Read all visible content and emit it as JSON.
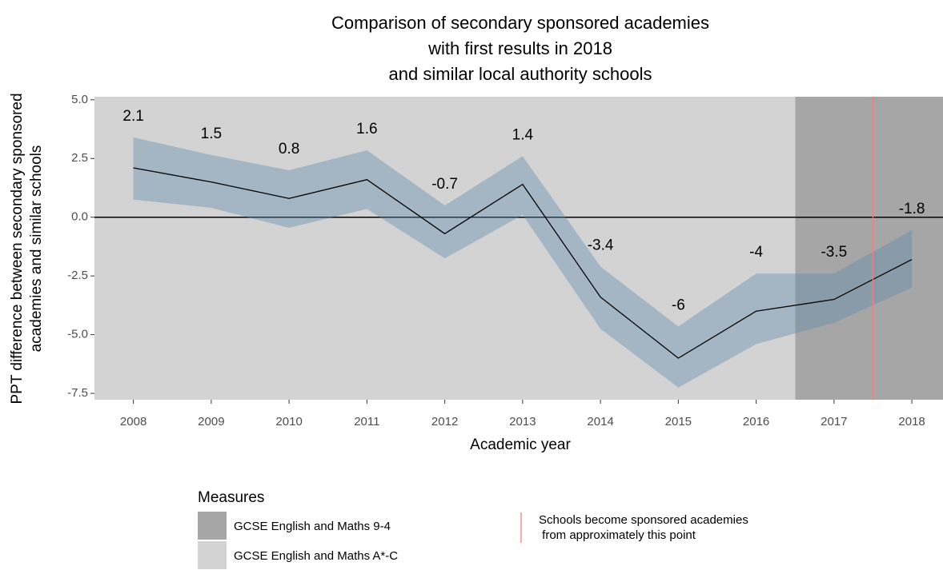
{
  "chart_data": {
    "type": "line",
    "title": [
      "Comparison of secondary sponsored academies",
      "with first results in 2018",
      "and similar local authority schools"
    ],
    "x_label": "Academic year",
    "y_label": [
      "PPT difference between secondary sponsored",
      "academies and similar schools"
    ],
    "x": [
      2008,
      2009,
      2010,
      2011,
      2012,
      2013,
      2014,
      2015,
      2016,
      2017,
      2018
    ],
    "xlim": [
      2007.5,
      2018.4
    ],
    "xticks": [
      2008,
      2009,
      2010,
      2011,
      2012,
      2013,
      2014,
      2015,
      2016,
      2017,
      2018
    ],
    "ylim": [
      -7.77,
      5.13
    ],
    "yticks": [
      {
        "value": 5,
        "label": "5.0"
      },
      {
        "value": 2.5,
        "label": "2.5"
      },
      {
        "value": 0,
        "label": "0.0"
      },
      {
        "value": -2.5,
        "label": "-2.5"
      },
      {
        "value": -5,
        "label": "-5.0"
      },
      {
        "value": -7.5,
        "label": "-7.5"
      }
    ],
    "series": [
      {
        "color": "#000000",
        "band_color": "#608aad",
        "values": [
          2.1,
          1.5,
          0.8,
          1.6,
          -0.7,
          1.4,
          -3.4,
          -6,
          -4,
          -3.5,
          -1.8
        ],
        "upper": [
          3.4,
          2.65,
          2.0,
          2.85,
          0.5,
          2.6,
          -2.1,
          -4.65,
          -2.4,
          -2.4,
          -0.55
        ],
        "lower": [
          0.75,
          0.4,
          -0.45,
          0.35,
          -1.75,
          0.1,
          -4.75,
          -7.25,
          -5.4,
          -4.5,
          -3.0
        ]
      }
    ],
    "hline": 0,
    "legend_title": "Measures",
    "regions": [
      {
        "name": "GCSE English and Maths 9-4",
        "color": "#a6a6a6",
        "xrange": [
          2016.5,
          2018.4
        ]
      },
      {
        "name": "GCSE English and Maths A*-C",
        "color": "#d3d3d3",
        "xrange": [
          2007.5,
          2016.5
        ]
      }
    ],
    "vline": {
      "x": 2017.5,
      "color": "#f08080",
      "label": [
        "Schools become sponsored academies",
        " from approximately this point"
      ]
    }
  }
}
